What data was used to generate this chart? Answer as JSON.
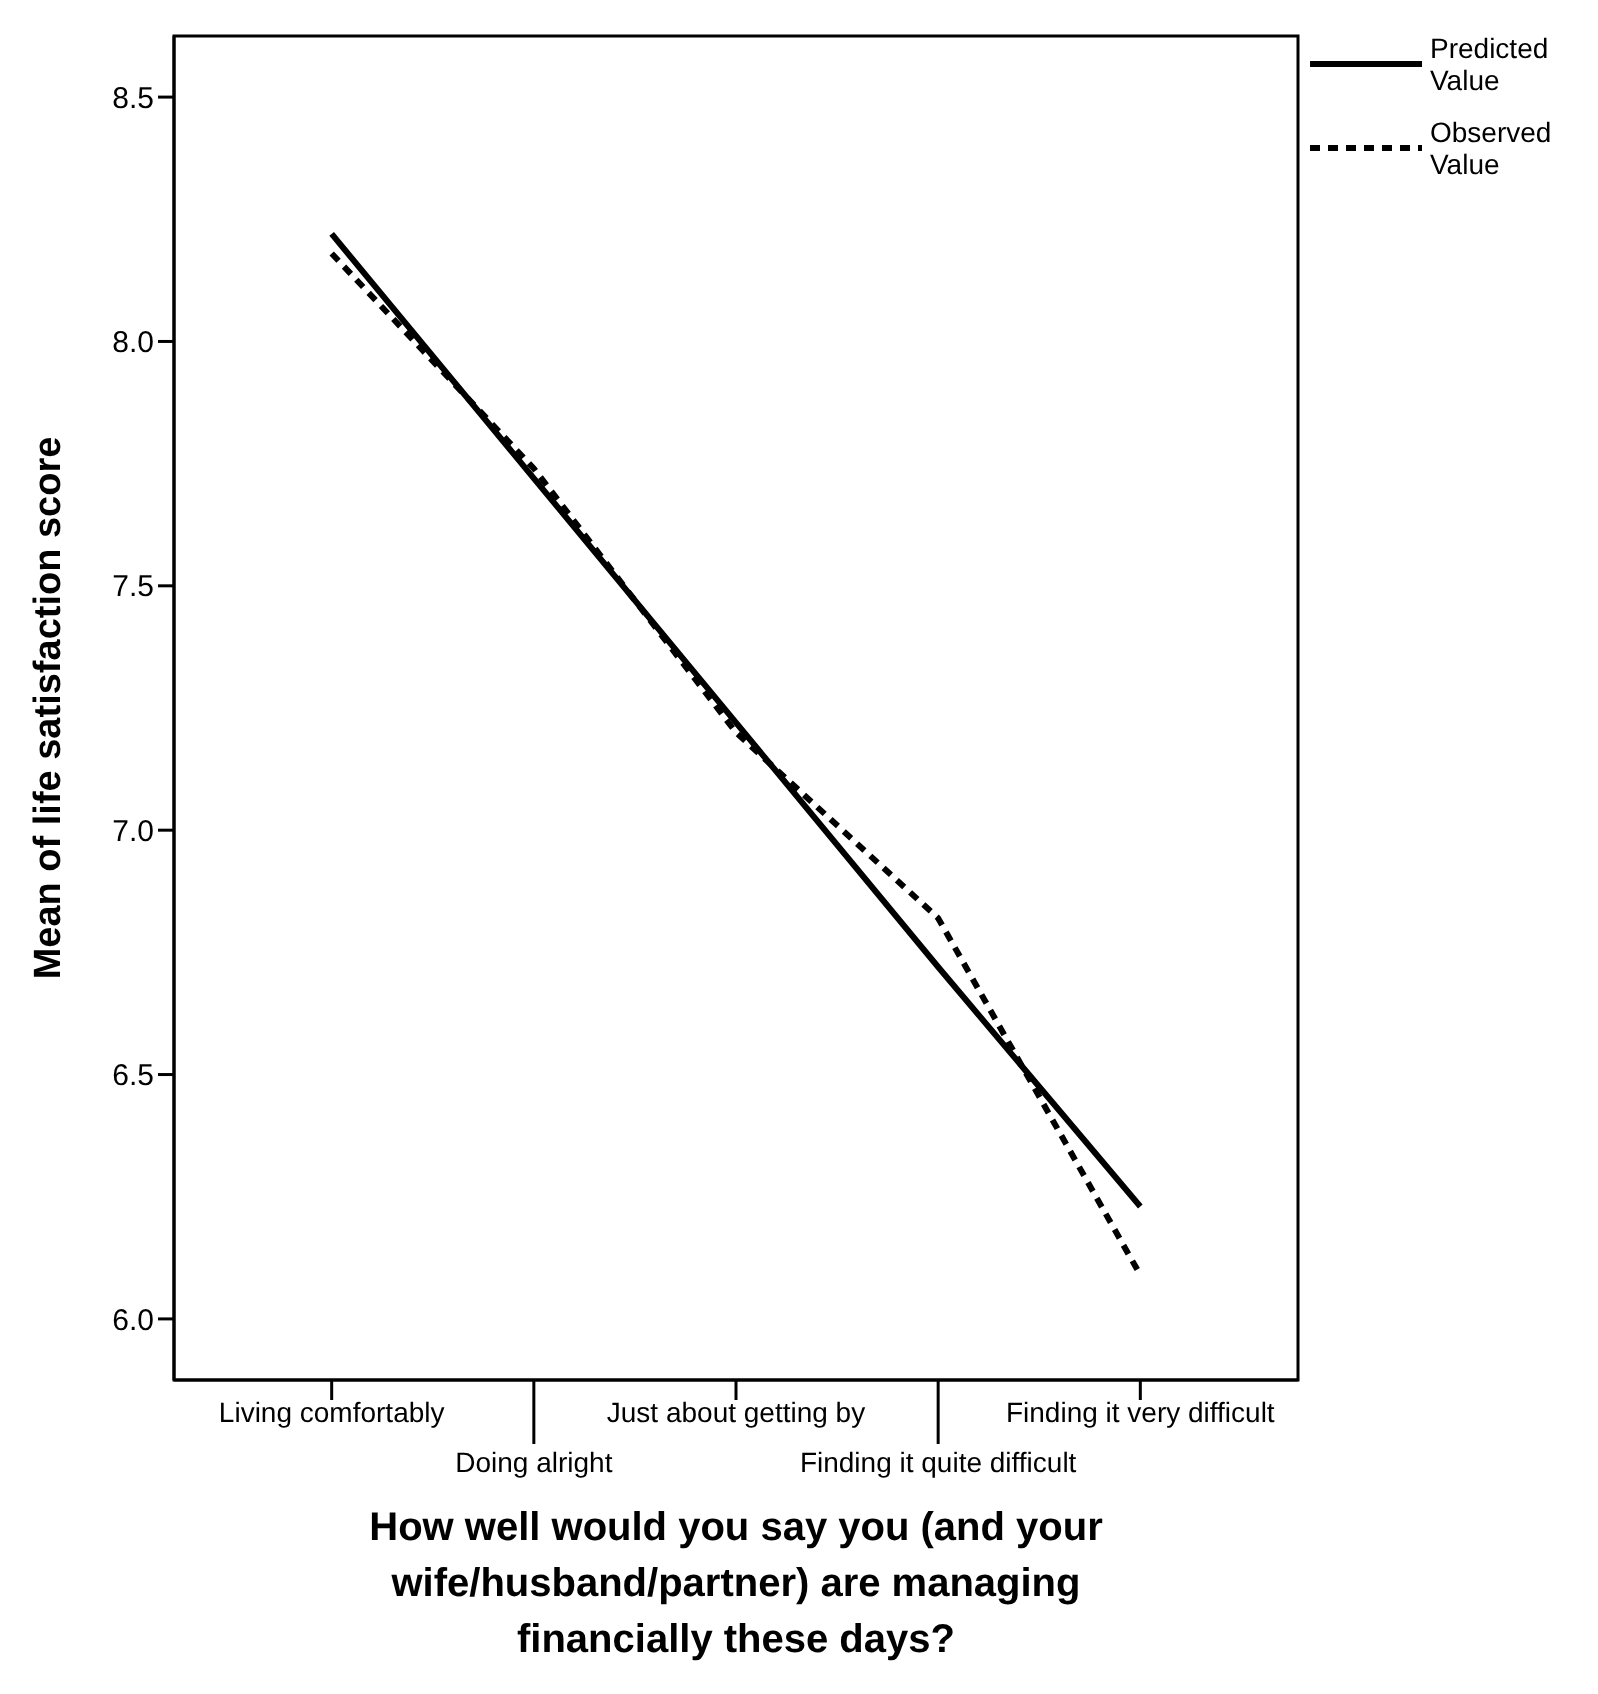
{
  "chart_data": {
    "type": "line",
    "xlabel": "How well would you say you (and your wife/husband/partner) are managing financially these days?",
    "ylabel": "Mean of life satisfaction score",
    "categories": [
      "Living comfortably",
      "Doing alright",
      "Just about getting by",
      "Finding it quite difficult",
      "Finding it very difficult"
    ],
    "series": [
      {
        "name": "Predicted Value",
        "color": "#000000",
        "line_style": "solid",
        "values": [
          8.22,
          7.72,
          7.22,
          6.72,
          6.23
        ]
      },
      {
        "name": "Observed Value",
        "color": "#000000",
        "line_style": "dashed",
        "values": [
          8.18,
          7.74,
          7.2,
          6.82,
          6.09
        ]
      }
    ],
    "ylim": [
      5.875,
      8.625
    ],
    "yticks": [
      {
        "value": 6,
        "label": "6.0"
      },
      6.5,
      {
        "value": 7,
        "label": "7.0"
      },
      7.5,
      {
        "value": 8,
        "label": "8.0"
      },
      8.5
    ],
    "grid": false,
    "legend": "top right",
    "marker": "none"
  }
}
